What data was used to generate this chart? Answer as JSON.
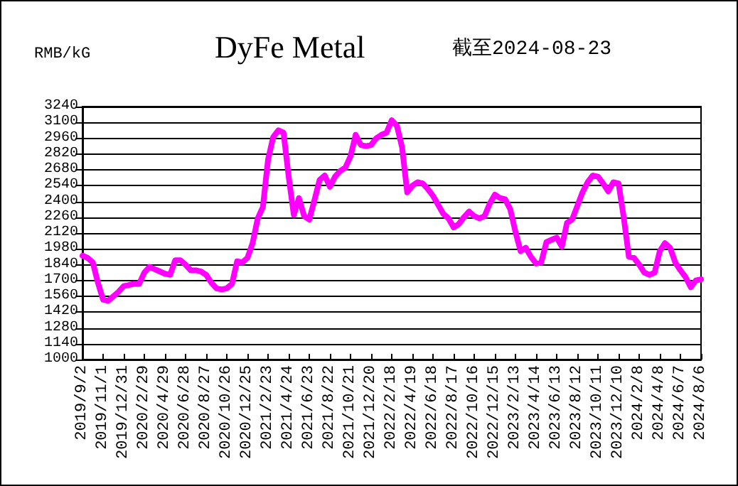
{
  "chart_data": {
    "type": "line",
    "title": "DyFe Metal",
    "subtitle": "截至2024-08-23",
    "ylabel": "RMB/kG",
    "categories": [
      "2019/9/2",
      null,
      null,
      null,
      "2019/11/1",
      null,
      null,
      null,
      "2019/12/31",
      null,
      null,
      null,
      "2020/2/29",
      null,
      null,
      null,
      "2020/4/29",
      null,
      null,
      null,
      "2020/6/28",
      null,
      null,
      null,
      "2020/8/27",
      null,
      null,
      null,
      "2020/10/26",
      null,
      null,
      null,
      "2020/12/25",
      null,
      null,
      null,
      "2021/2/23",
      null,
      null,
      null,
      "2021/4/24",
      null,
      null,
      null,
      "2021/6/23",
      null,
      null,
      null,
      "2021/8/22",
      null,
      null,
      null,
      "2021/10/21",
      null,
      null,
      null,
      "2021/12/20",
      null,
      null,
      null,
      "2022/2/18",
      null,
      null,
      null,
      "2022/4/19",
      null,
      null,
      null,
      "2022/6/18",
      null,
      null,
      null,
      "2022/8/17",
      null,
      null,
      null,
      "2022/10/16",
      null,
      null,
      null,
      "2022/12/15",
      null,
      null,
      null,
      "2023/2/13",
      null,
      null,
      null,
      "2023/4/14",
      null,
      null,
      null,
      "2023/6/13",
      null,
      null,
      null,
      "2023/8/12",
      null,
      null,
      null,
      "2023/10/11",
      null,
      null,
      null,
      "2023/12/10",
      null,
      null,
      null,
      "2024/2/8",
      null,
      null,
      null,
      "2024/4/8",
      null,
      null,
      null,
      "2024/6/7",
      null,
      null,
      null,
      "2024/8/6"
    ],
    "series": [
      {
        "color": "#ff00ff",
        "values": [
          1920,
          1900,
          1860,
          1680,
          1530,
          1520,
          1560,
          1600,
          1650,
          1660,
          1670,
          1670,
          1770,
          1820,
          1800,
          1780,
          1760,
          1750,
          1880,
          1880,
          1840,
          1790,
          1790,
          1780,
          1750,
          1680,
          1630,
          1620,
          1630,
          1670,
          1870,
          1860,
          1900,
          2030,
          2250,
          2350,
          2770,
          2970,
          3030,
          3010,
          2620,
          2280,
          2430,
          2270,
          2240,
          2410,
          2590,
          2630,
          2530,
          2620,
          2670,
          2700,
          2800,
          2990,
          2900,
          2890,
          2900,
          2960,
          2990,
          3010,
          3120,
          3070,
          2880,
          2480,
          2540,
          2570,
          2560,
          2510,
          2450,
          2370,
          2290,
          2250,
          2170,
          2200,
          2260,
          2310,
          2270,
          2250,
          2270,
          2380,
          2460,
          2430,
          2420,
          2330,
          2130,
          1960,
          1990,
          1910,
          1850,
          1860,
          2040,
          2060,
          2080,
          2000,
          2210,
          2240,
          2360,
          2480,
          2570,
          2630,
          2620,
          2560,
          2490,
          2570,
          2560,
          2260,
          1910,
          1900,
          1840,
          1770,
          1750,
          1770,
          1960,
          2030,
          1990,
          1860,
          1790,
          1730,
          1640,
          1700,
          1710
        ]
      }
    ],
    "ylim": [
      1000,
      3240
    ],
    "yticks": [
      1000,
      1140,
      1280,
      1420,
      1560,
      1700,
      1840,
      1980,
      2120,
      2260,
      2400,
      2540,
      2680,
      2820,
      2960,
      3100,
      3240
    ],
    "grid": "y",
    "marker": "none",
    "line_style": "solid"
  }
}
